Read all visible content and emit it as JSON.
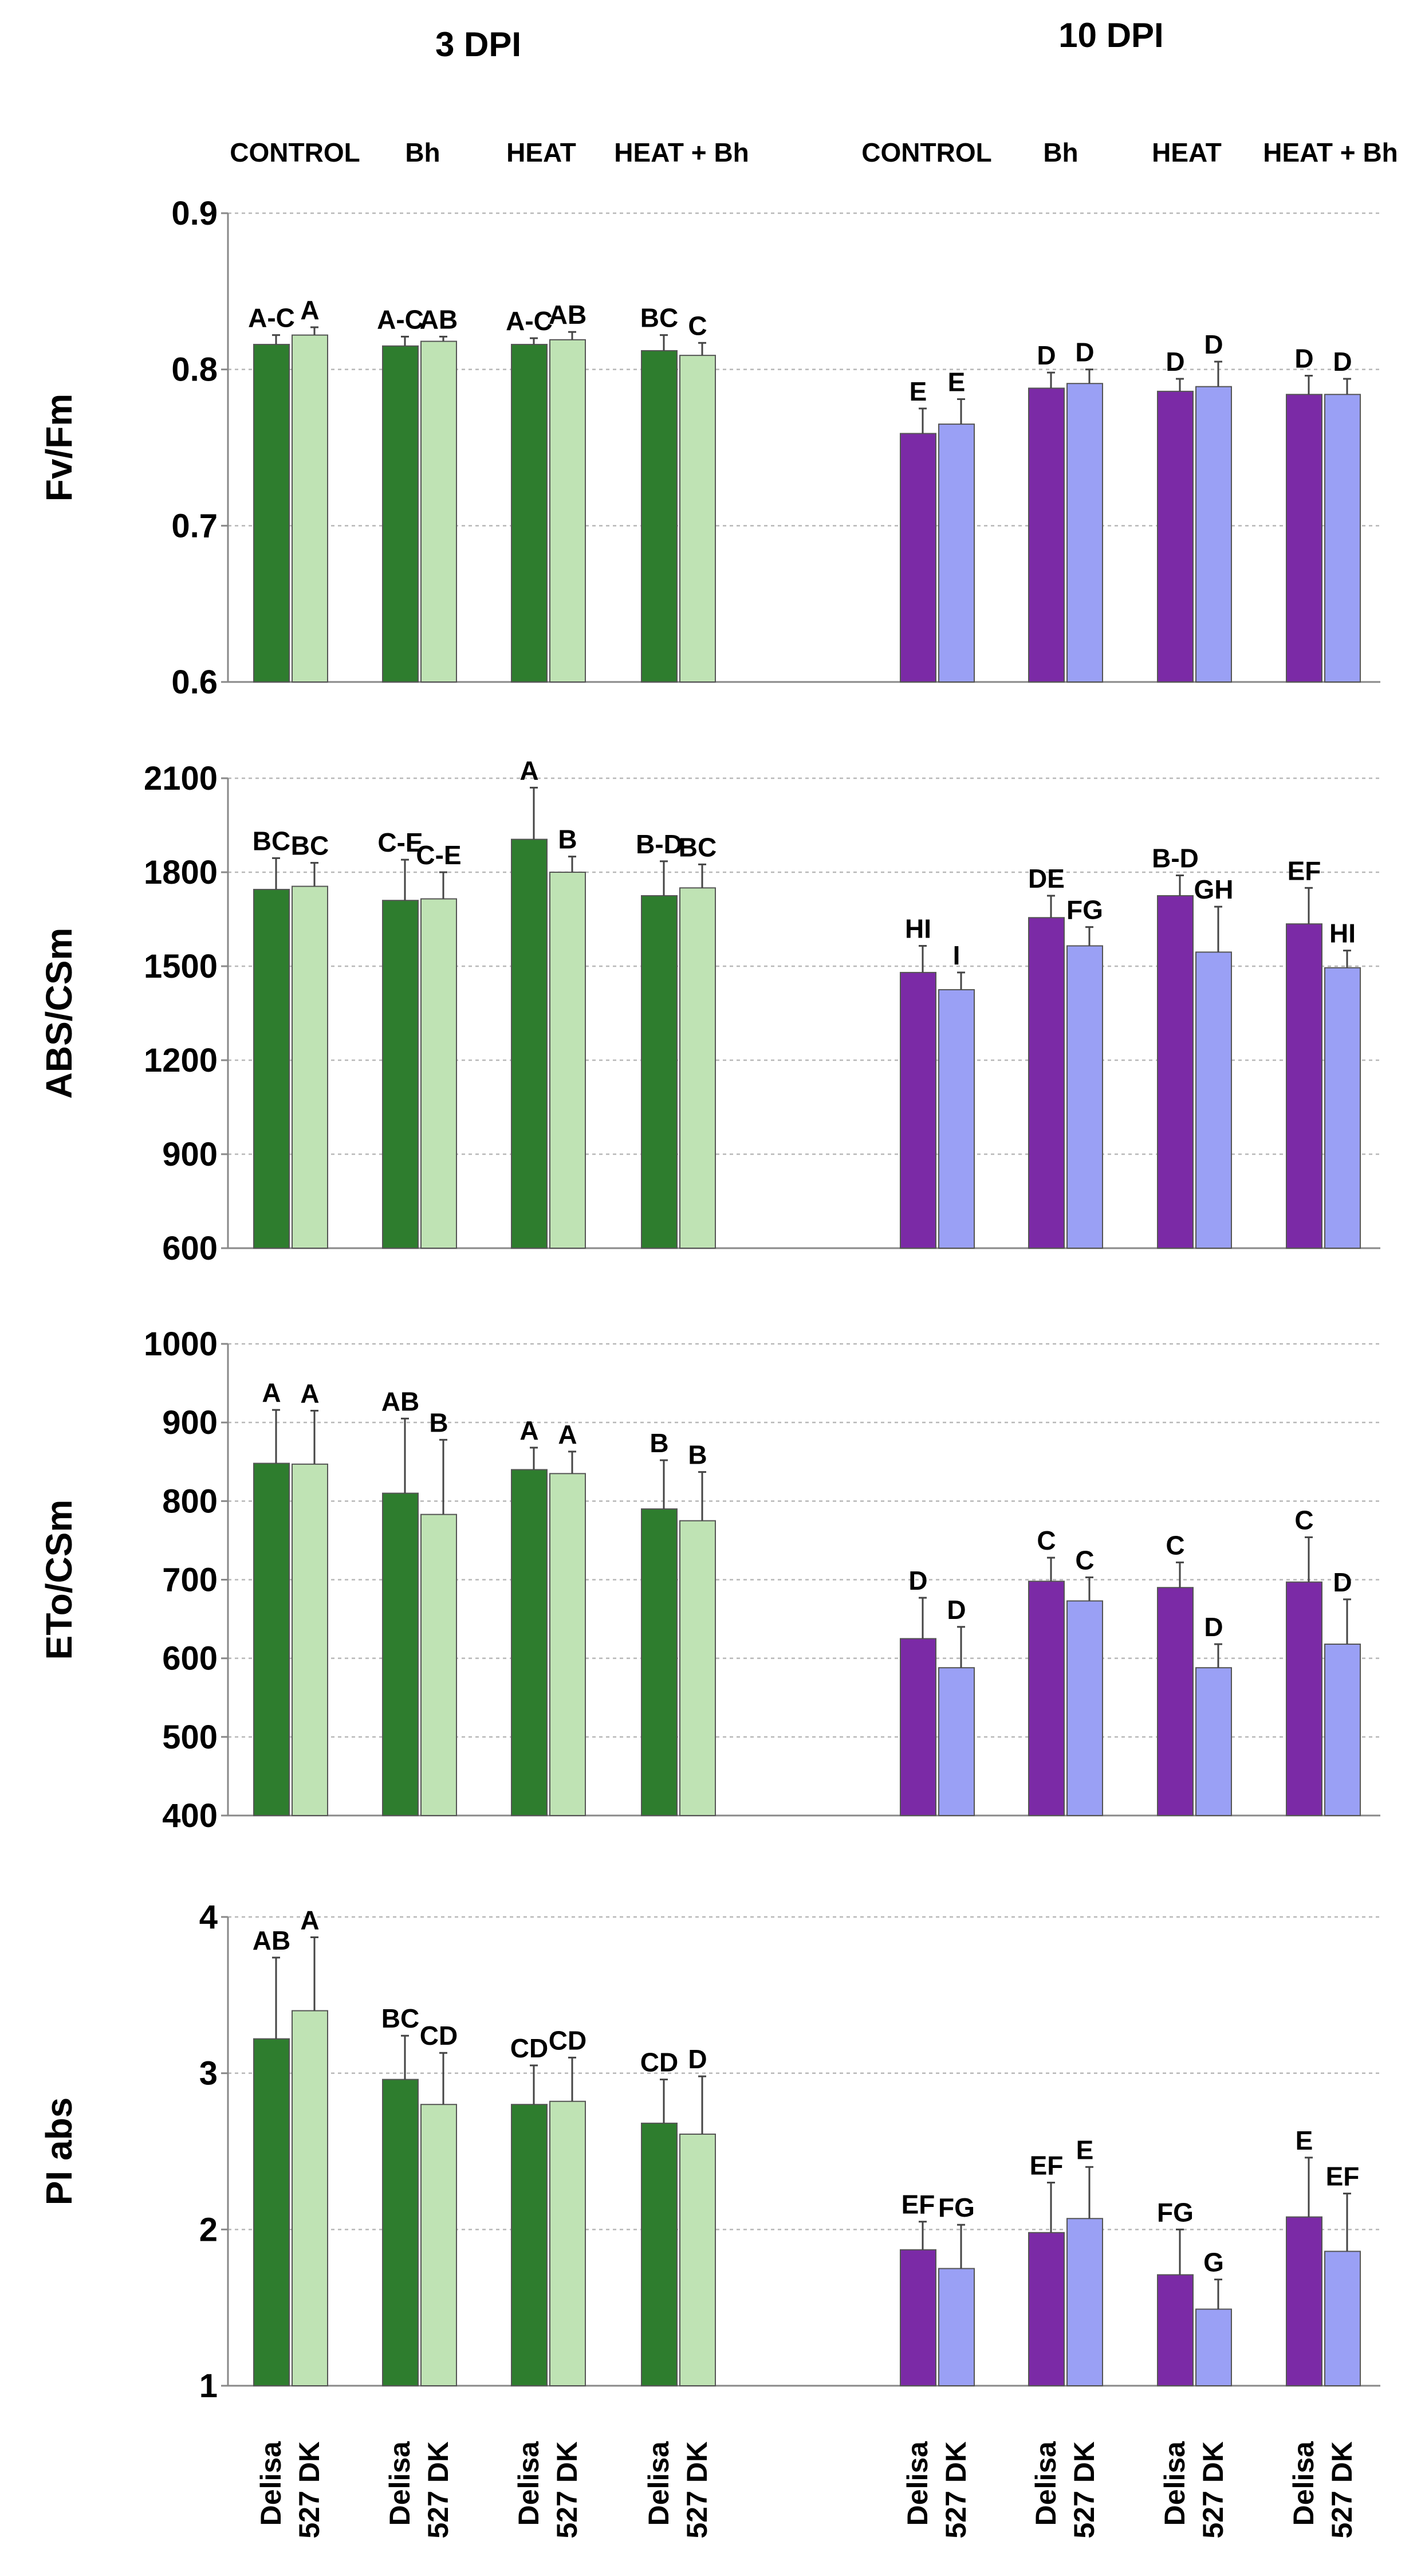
{
  "header": {
    "periods": [
      "3 DPI",
      "10 DPI"
    ],
    "treatments": [
      "CONTROL",
      "Bh",
      "HEAT",
      "HEAT + Bh"
    ],
    "varieties": [
      "Delisa",
      "527 DK"
    ]
  },
  "colors": {
    "dpi3_delisa": "#2e7d2e",
    "dpi3_527dk": "#bfe3b4",
    "dpi10_delisa": "#7b2aa6",
    "dpi10_527dk": "#9aa0f5",
    "grid": "#b8b8b8",
    "axis": "#888888"
  },
  "chart_data": [
    {
      "type": "bar",
      "ylabel": "Fv/Fm",
      "ylim": [
        0.6,
        0.9
      ],
      "yticks": [
        "0.6",
        "0.7",
        "0.8",
        "0.9"
      ],
      "categories": [
        "3 DPI CONTROL",
        "3 DPI Bh",
        "3 DPI HEAT",
        "3 DPI HEAT + Bh",
        "10 DPI CONTROL",
        "10 DPI Bh",
        "10 DPI HEAT",
        "10 DPI HEAT + Bh"
      ],
      "series": [
        {
          "name": "Delisa",
          "values": [
            0.816,
            0.815,
            0.816,
            0.812,
            0.759,
            0.788,
            0.786,
            0.784
          ],
          "errors": [
            0.006,
            0.006,
            0.004,
            0.01,
            0.016,
            0.01,
            0.008,
            0.012
          ],
          "labels": [
            "A-C",
            "A-C",
            "A-C",
            "BC",
            "E",
            "D",
            "D",
            "D"
          ]
        },
        {
          "name": "527 DK",
          "values": [
            0.822,
            0.818,
            0.819,
            0.809,
            0.765,
            0.791,
            0.789,
            0.784
          ],
          "errors": [
            0.005,
            0.003,
            0.005,
            0.008,
            0.016,
            0.009,
            0.016,
            0.01
          ],
          "labels": [
            "A",
            "AB",
            "AB",
            "C",
            "E",
            "D",
            "D",
            "D"
          ]
        }
      ]
    },
    {
      "type": "bar",
      "ylabel": "ABS/CSm",
      "ylim": [
        600,
        2100
      ],
      "yticks": [
        "600",
        "900",
        "1200",
        "1500",
        "1800",
        "2100"
      ],
      "categories": [
        "3 DPI CONTROL",
        "3 DPI Bh",
        "3 DPI HEAT",
        "3 DPI HEAT + Bh",
        "10 DPI CONTROL",
        "10 DPI Bh",
        "10 DPI HEAT",
        "10 DPI HEAT + Bh"
      ],
      "series": [
        {
          "name": "Delisa",
          "values": [
            1745,
            1710,
            1905,
            1725,
            1480,
            1655,
            1725,
            1635
          ],
          "errors": [
            100,
            130,
            165,
            110,
            85,
            70,
            65,
            115
          ],
          "labels": [
            "BC",
            "C-E",
            "A",
            "B-D",
            "HI",
            "DE",
            "B-D",
            "EF"
          ]
        },
        {
          "name": "527 DK",
          "values": [
            1755,
            1715,
            1800,
            1750,
            1425,
            1565,
            1545,
            1495
          ],
          "errors": [
            75,
            85,
            50,
            75,
            55,
            60,
            145,
            55
          ],
          "labels": [
            "BC",
            "C-E",
            "B",
            "BC",
            "I",
            "FG",
            "GH",
            "HI"
          ]
        }
      ]
    },
    {
      "type": "bar",
      "ylabel": "ETo/CSm",
      "ylim": [
        400,
        1000
      ],
      "yticks": [
        "400",
        "500",
        "600",
        "700",
        "800",
        "900",
        "1000"
      ],
      "categories": [
        "3 DPI CONTROL",
        "3 DPI Bh",
        "3 DPI HEAT",
        "3 DPI HEAT + Bh",
        "10 DPI CONTROL",
        "10 DPI Bh",
        "10 DPI HEAT",
        "10 DPI HEAT + Bh"
      ],
      "series": [
        {
          "name": "Delisa",
          "values": [
            848,
            810,
            840,
            790,
            625,
            698,
            690,
            697
          ],
          "errors": [
            68,
            95,
            28,
            62,
            52,
            30,
            32,
            57
          ],
          "labels": [
            "A",
            "AB",
            "A",
            "B",
            "D",
            "C",
            "C",
            "C"
          ]
        },
        {
          "name": "527 DK",
          "values": [
            847,
            783,
            835,
            775,
            588,
            673,
            588,
            618
          ],
          "errors": [
            68,
            95,
            28,
            62,
            52,
            30,
            30,
            57
          ],
          "labels": [
            "A",
            "B",
            "A",
            "B",
            "D",
            "C",
            "D",
            "D"
          ]
        }
      ]
    },
    {
      "type": "bar",
      "ylabel": "PI abs",
      "ylim": [
        1,
        4
      ],
      "yticks": [
        "1",
        "2",
        "3",
        "4"
      ],
      "categories": [
        "3 DPI CONTROL",
        "3 DPI Bh",
        "3 DPI HEAT",
        "3 DPI HEAT + Bh",
        "10 DPI CONTROL",
        "10 DPI Bh",
        "10 DPI HEAT",
        "10 DPI HEAT + Bh"
      ],
      "series": [
        {
          "name": "Delisa",
          "values": [
            3.22,
            2.96,
            2.8,
            2.68,
            1.87,
            1.98,
            1.71,
            2.08
          ],
          "errors": [
            0.52,
            0.28,
            0.25,
            0.28,
            0.18,
            0.32,
            0.29,
            0.38
          ],
          "labels": [
            "AB",
            "BC",
            "CD",
            "CD",
            "EF",
            "EF",
            "FG",
            "E"
          ]
        },
        {
          "name": "527 DK",
          "values": [
            3.4,
            2.8,
            2.82,
            2.61,
            1.75,
            2.07,
            1.49,
            1.86
          ],
          "errors": [
            0.47,
            0.33,
            0.28,
            0.37,
            0.28,
            0.33,
            0.19,
            0.37
          ],
          "labels": [
            "A",
            "CD",
            "CD",
            "D",
            "FG",
            "E",
            "G",
            "EF"
          ]
        }
      ]
    }
  ]
}
